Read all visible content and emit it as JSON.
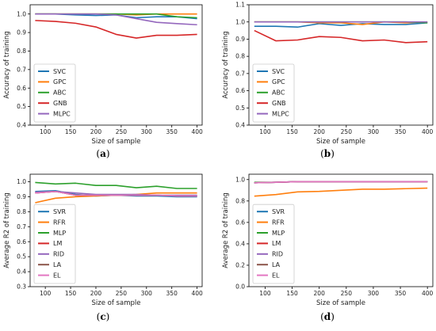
{
  "colors": {
    "SVC": "#1f77b4",
    "GPC": "#ff7f0e",
    "ABC": "#2ca02c",
    "GNB": "#d62728",
    "MLPC": "#9467bd",
    "SVR": "#1f77b4",
    "RFR": "#ff7f0e",
    "MLP": "#2ca02c",
    "LM": "#d62728",
    "RID": "#9467bd",
    "LA": "#8c564b",
    "EL": "#e377c2"
  },
  "chart_data": [
    {
      "id": "a",
      "type": "line",
      "caption": "(a)",
      "xlabel": "Size of sample",
      "ylabel": "Accuracy of training",
      "xlim": [
        70,
        410
      ],
      "ylim": [
        0.4,
        1.05
      ],
      "xticks": [
        100,
        150,
        200,
        250,
        300,
        350,
        400
      ],
      "yticks": [
        0.4,
        0.5,
        0.6,
        0.7,
        0.8,
        0.9,
        1.0
      ],
      "legend_loc": "lower-left",
      "x": [
        80,
        120,
        160,
        200,
        240,
        280,
        320,
        360,
        400
      ],
      "series": [
        {
          "name": "SVC",
          "values": [
            1.0,
            1.0,
            0.995,
            0.992,
            0.995,
            0.98,
            0.985,
            0.985,
            0.975
          ]
        },
        {
          "name": "GPC",
          "values": [
            1.0,
            1.0,
            1.0,
            1.0,
            1.0,
            0.995,
            1.0,
            1.0,
            1.0
          ]
        },
        {
          "name": "ABC",
          "values": [
            1.0,
            1.0,
            1.0,
            1.0,
            1.0,
            1.0,
            1.0,
            0.985,
            0.98
          ]
        },
        {
          "name": "GNB",
          "values": [
            0.965,
            0.96,
            0.95,
            0.93,
            0.89,
            0.87,
            0.885,
            0.885,
            0.89
          ]
        },
        {
          "name": "MLPC",
          "values": [
            1.0,
            1.0,
            1.0,
            1.0,
            0.995,
            0.975,
            0.955,
            0.948,
            0.942
          ]
        }
      ]
    },
    {
      "id": "b",
      "type": "line",
      "caption": "(b)",
      "xlabel": "Size of sample",
      "ylabel": "Accuracy of training",
      "xlim": [
        70,
        410
      ],
      "ylim": [
        0.4,
        1.1
      ],
      "xticks": [
        100,
        150,
        200,
        250,
        300,
        350,
        400
      ],
      "yticks": [
        0.4,
        0.5,
        0.6,
        0.7,
        0.8,
        0.9,
        1.0,
        1.1
      ],
      "legend_loc": "lower-left",
      "x": [
        80,
        120,
        160,
        200,
        240,
        280,
        320,
        360,
        400
      ],
      "series": [
        {
          "name": "SVC",
          "values": [
            0.975,
            0.975,
            0.97,
            0.99,
            0.98,
            0.99,
            0.985,
            0.985,
            0.995
          ]
        },
        {
          "name": "GPC",
          "values": [
            1.0,
            1.0,
            1.0,
            0.995,
            0.995,
            0.985,
            1.0,
            0.995,
            1.0
          ]
        },
        {
          "name": "ABC",
          "values": [
            1.0,
            1.0,
            1.0,
            1.0,
            1.0,
            1.0,
            1.0,
            1.0,
            0.995
          ]
        },
        {
          "name": "GNB",
          "values": [
            0.95,
            0.89,
            0.895,
            0.915,
            0.91,
            0.89,
            0.895,
            0.88,
            0.885
          ]
        },
        {
          "name": "MLPC",
          "values": [
            1.0,
            1.0,
            1.0,
            1.0,
            1.0,
            1.0,
            1.0,
            1.0,
            1.0
          ]
        }
      ]
    },
    {
      "id": "c",
      "type": "line",
      "caption": "(c)",
      "xlabel": "Size of sample",
      "ylabel": "Average R2 of training",
      "xlim": [
        70,
        410
      ],
      "ylim": [
        0.3,
        1.05
      ],
      "xticks": [
        100,
        150,
        200,
        250,
        300,
        350,
        400
      ],
      "yticks": [
        0.3,
        0.4,
        0.5,
        0.6,
        0.7,
        0.8,
        0.9,
        1.0
      ],
      "legend_loc": "lower-left",
      "x": [
        80,
        120,
        160,
        200,
        240,
        280,
        320,
        360,
        400
      ],
      "series": [
        {
          "name": "SVR",
          "values": [
            0.935,
            0.94,
            0.915,
            0.905,
            0.91,
            0.905,
            0.905,
            0.9,
            0.9
          ]
        },
        {
          "name": "RFR",
          "values": [
            0.86,
            0.89,
            0.9,
            0.905,
            0.91,
            0.915,
            0.925,
            0.925,
            0.925
          ]
        },
        {
          "name": "MLP",
          "values": [
            0.995,
            0.985,
            0.99,
            0.975,
            0.975,
            0.96,
            0.97,
            0.955,
            0.955
          ]
        },
        {
          "name": "LM",
          "values": [
            0.925,
            0.935,
            0.91,
            0.91,
            0.91,
            0.91,
            0.91,
            0.905,
            0.905
          ]
        },
        {
          "name": "RID",
          "values": [
            0.93,
            0.935,
            0.925,
            0.915,
            0.915,
            0.915,
            0.91,
            0.91,
            0.91
          ]
        },
        {
          "name": "LA",
          "values": [
            0.925,
            0.935,
            0.91,
            0.91,
            0.91,
            0.91,
            0.91,
            0.905,
            0.905
          ]
        },
        {
          "name": "EL",
          "values": [
            0.925,
            0.935,
            0.91,
            0.91,
            0.91,
            0.91,
            0.91,
            0.905,
            0.905
          ]
        }
      ]
    },
    {
      "id": "d",
      "type": "line",
      "caption": "(d)",
      "xlabel": "Size of sample",
      "ylabel": "Average R2 of training",
      "xlim": [
        70,
        410
      ],
      "ylim": [
        0.0,
        1.05
      ],
      "xticks": [
        100,
        150,
        200,
        250,
        300,
        350,
        400
      ],
      "yticks": [
        0.0,
        0.2,
        0.4,
        0.6,
        0.8,
        1.0
      ],
      "legend_loc": "lower-left",
      "x": [
        80,
        120,
        160,
        200,
        240,
        280,
        320,
        360,
        400
      ],
      "series": [
        {
          "name": "SVR",
          "values": [
            0.97,
            0.975,
            0.98,
            0.98,
            0.98,
            0.98,
            0.98,
            0.98,
            0.98
          ]
        },
        {
          "name": "RFR",
          "values": [
            0.845,
            0.86,
            0.885,
            0.89,
            0.9,
            0.91,
            0.91,
            0.915,
            0.92
          ]
        },
        {
          "name": "MLP",
          "values": [
            0.975,
            0.975,
            0.98,
            0.98,
            0.98,
            0.98,
            0.98,
            0.98,
            0.98
          ]
        },
        {
          "name": "LM",
          "values": [
            0.97,
            0.975,
            0.98,
            0.98,
            0.98,
            0.98,
            0.98,
            0.98,
            0.98
          ]
        },
        {
          "name": "RID",
          "values": [
            0.97,
            0.975,
            0.98,
            0.98,
            0.98,
            0.98,
            0.98,
            0.98,
            0.98
          ]
        },
        {
          "name": "LA",
          "values": [
            0.97,
            0.975,
            0.98,
            0.98,
            0.98,
            0.98,
            0.98,
            0.98,
            0.98
          ]
        },
        {
          "name": "EL",
          "values": [
            0.97,
            0.975,
            0.98,
            0.98,
            0.98,
            0.98,
            0.98,
            0.98,
            0.98
          ]
        }
      ]
    }
  ]
}
